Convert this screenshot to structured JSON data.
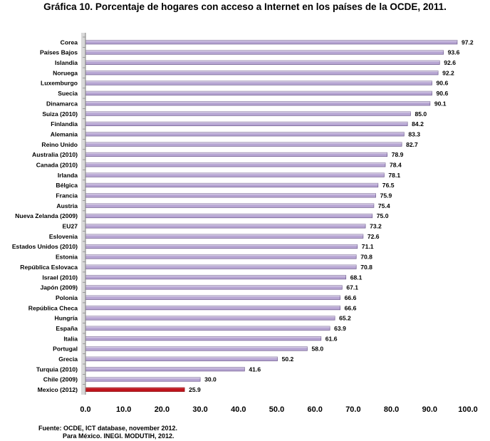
{
  "chart_data": {
    "type": "bar",
    "orientation": "horizontal",
    "title": "Gráfica 10. Porcentaje de hogares con acceso a Internet en los países de la OCDE, 2011.",
    "categories": [
      "Corea",
      "Países Bajos",
      "Islandia",
      "Noruega",
      "Luxemburgo",
      "Suecia",
      "Dinamarca",
      "Suiza (2010)",
      "Finlandia",
      "Alemania",
      "Reino Unido",
      "Australia (2010)",
      "Canada (2010)",
      "Irlanda",
      "Bélgica",
      "Francia",
      "Austria",
      "Nueva Zelanda (2009)",
      "EU27",
      "Eslovenia",
      "Estados Unidos (2010)",
      "Estonia",
      "República Eslovaca",
      "Israel (2010)",
      "Japón (2009)",
      "Polonia",
      "República Checa",
      "Hungría",
      "España",
      "Italia",
      "Portugal",
      "Grecia",
      "Turquia (2010)",
      "Chile (2009)",
      "Mexico (2012)"
    ],
    "values": [
      97.2,
      93.6,
      92.6,
      92.2,
      90.6,
      90.6,
      90.1,
      85.0,
      84.2,
      83.3,
      82.7,
      78.9,
      78.4,
      78.1,
      76.5,
      75.9,
      75.4,
      75.0,
      73.2,
      72.6,
      71.1,
      70.8,
      70.8,
      68.1,
      67.1,
      66.6,
      66.6,
      65.2,
      63.9,
      61.6,
      58.0,
      50.2,
      41.6,
      30.0,
      25.9
    ],
    "value_labels": [
      "97.2",
      "93.6",
      "92.6",
      "92.2",
      "90.6",
      "90.6",
      "90.1",
      "85.0",
      "84.2",
      "83.3",
      "82.7",
      "78.9",
      "78.4",
      "78.1",
      "76.5",
      "75.9",
      "75.4",
      "75.0",
      "73.2",
      "72.6",
      "71.1",
      "70.8",
      "70.8",
      "68.1",
      "67.1",
      "66.6",
      "66.6",
      "65.2",
      "63.9",
      "61.6",
      "58.0",
      "50.2",
      "41.6",
      "30.0",
      "25.9"
    ],
    "highlight_index": 34,
    "xlim": [
      0,
      100
    ],
    "xticks": [
      "0.0",
      "10.0",
      "20.0",
      "30.0",
      "40.0",
      "50.0",
      "60.0",
      "70.0",
      "80.0",
      "90.0",
      "100.0"
    ],
    "grid": false,
    "colors": {
      "bar": "#b7a6d3",
      "bar_edge": "#6d5a8c",
      "highlight": "#c0141c",
      "highlight_edge": "#8a0d12"
    }
  },
  "source": {
    "line1": "Fuente: OCDE, ICT database, november 2012.",
    "line2": "Para México. INEGI. MODUTIH, 2012."
  }
}
